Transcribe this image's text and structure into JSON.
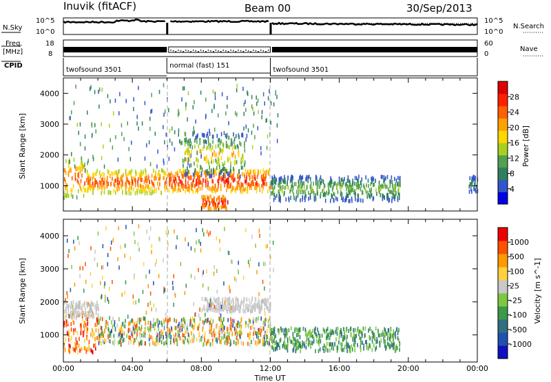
{
  "header": {
    "station": "Inuvik (fitACF)",
    "beam": "Beam 00",
    "date": "30/Sep/2013"
  },
  "top_panel": {
    "left_label": "N.Sky",
    "right_label": "N.Search",
    "left_ticks": [
      "10^5",
      "10^0"
    ],
    "right_ticks": [
      "10^5",
      "10^0"
    ]
  },
  "freq_panel": {
    "left_label_line1": "Freq.",
    "left_label_line2": "[MHz]",
    "right_label": "Nave",
    "left_ticks": [
      "18",
      "8"
    ],
    "right_ticks": [
      "60",
      "0"
    ]
  },
  "cpid": {
    "label": "CPID",
    "segments": [
      {
        "name": "twofsound 3501",
        "start": 0,
        "end": 6
      },
      {
        "name": "normal (fast) 151",
        "start": 6,
        "end": 12
      },
      {
        "name": "twofsound 3501",
        "start": 12,
        "end": 24
      }
    ]
  },
  "chart_data": [
    {
      "type": "heatmap",
      "title": "",
      "variable": "Power",
      "colorbar_label": "Power [dB]",
      "xlabel": "Time UT",
      "ylabel": "Slant Range [km]",
      "xlim": [
        0,
        24
      ],
      "ylim": [
        180,
        4500
      ],
      "x_ticks": [
        "00:00",
        "04:00",
        "08:00",
        "12:00",
        "16:00",
        "20:00",
        "00:00"
      ],
      "y_ticks": [
        1000,
        2000,
        3000,
        4000
      ],
      "colorbar_ticks": [
        4,
        8,
        12,
        16,
        20,
        24,
        28
      ],
      "colorbar_range": [
        0,
        32
      ],
      "colorbar_colors": [
        "#0000e6",
        "#3355cc",
        "#2f7f5f",
        "#52a050",
        "#a8d020",
        "#ffd700",
        "#ffa000",
        "#ff6000",
        "#ff2000",
        "#dd0000"
      ],
      "scatter_bands": [
        {
          "t0": 0,
          "t1": 1.2,
          "r0": 600,
          "r1": 1900,
          "v0": 12,
          "v1": 28
        },
        {
          "t0": 1.2,
          "t1": 6,
          "r0": 750,
          "r1": 1500,
          "v0": 14,
          "v1": 28
        },
        {
          "t0": 6,
          "t1": 12,
          "r0": 800,
          "r1": 1500,
          "v0": 18,
          "v1": 30
        },
        {
          "t0": 7,
          "t1": 10.5,
          "r0": 1300,
          "r1": 2700,
          "v0": 4,
          "v1": 24
        },
        {
          "t0": 8,
          "t1": 9.5,
          "r0": 250,
          "r1": 650,
          "v0": 20,
          "v1": 30
        },
        {
          "t0": 12,
          "t1": 19.5,
          "r0": 500,
          "r1": 1300,
          "v0": 4,
          "v1": 16
        },
        {
          "t0": 23.5,
          "t1": 24,
          "r0": 800,
          "r1": 1300,
          "v0": 4,
          "v1": 10
        }
      ]
    },
    {
      "type": "heatmap",
      "title": "",
      "variable": "Velocity",
      "colorbar_label": "Velocity [m s^-1]",
      "xlabel": "Time UT",
      "ylabel": "Slant Range [km]",
      "xlim": [
        0,
        24
      ],
      "ylim": [
        180,
        4500
      ],
      "x_ticks": [
        "00:00",
        "04:00",
        "08:00",
        "12:00",
        "16:00",
        "20:00",
        "00:00"
      ],
      "y_ticks": [
        1000,
        2000,
        3000,
        4000
      ],
      "colorbar_ticks": [
        "1000",
        "500",
        "100",
        "25",
        "-25",
        "-100",
        "-500",
        "-1000"
      ],
      "colorbar_colors": [
        "#1010c0",
        "#2050b0",
        "#306f80",
        "#3a9a4a",
        "#7ec840",
        "#c8c8c8",
        "#ffd040",
        "#ff9a00",
        "#ff5000",
        "#ee0000"
      ],
      "scatter_bands": [
        {
          "t0": 0,
          "t1": 2,
          "r0": 450,
          "r1": 1700,
          "c": "orange"
        },
        {
          "t0": 0,
          "t1": 2,
          "r0": 1500,
          "r1": 2000,
          "c": "gray"
        },
        {
          "t0": 2,
          "t1": 6,
          "r0": 700,
          "r1": 1500,
          "c": "mixed"
        },
        {
          "t0": 6,
          "t1": 12,
          "r0": 700,
          "r1": 1500,
          "c": "mixed"
        },
        {
          "t0": 8,
          "t1": 12,
          "r0": 1700,
          "r1": 2100,
          "c": "gray"
        },
        {
          "t0": 12,
          "t1": 19.5,
          "r0": 500,
          "r1": 1200,
          "c": "green"
        }
      ]
    }
  ]
}
